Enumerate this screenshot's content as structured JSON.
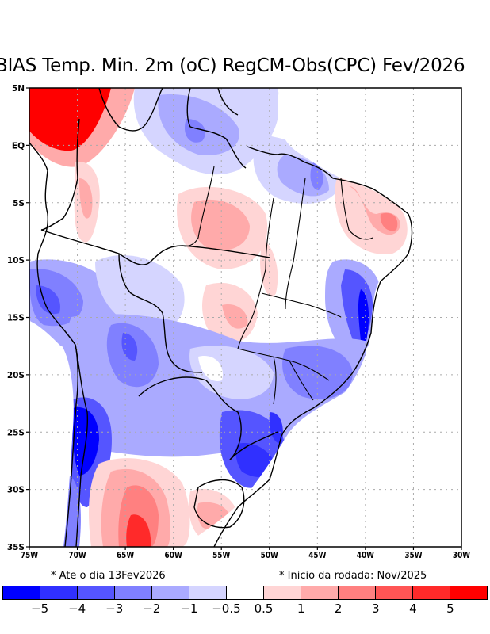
{
  "title": "BIAS Temp. Min. 2m (oC) RegCM-Obs(CPC) Fev/2026",
  "notes": {
    "left": "* Ate o dia 13Fev2026",
    "right": "* Inicio da rodada: Nov/2025"
  },
  "map": {
    "lon_range": [
      -75,
      -30
    ],
    "lat_range": [
      -35,
      5
    ],
    "lon_ticks": [
      {
        "value": -75,
        "label": "75W"
      },
      {
        "value": -70,
        "label": "70W"
      },
      {
        "value": -65,
        "label": "65W"
      },
      {
        "value": -60,
        "label": "60W"
      },
      {
        "value": -55,
        "label": "55W"
      },
      {
        "value": -50,
        "label": "50W"
      },
      {
        "value": -45,
        "label": "45W"
      },
      {
        "value": -40,
        "label": "40W"
      },
      {
        "value": -35,
        "label": "35W"
      },
      {
        "value": -30,
        "label": "30W"
      }
    ],
    "lat_ticks": [
      {
        "value": 5,
        "label": "5N"
      },
      {
        "value": 0,
        "label": "EQ"
      },
      {
        "value": -5,
        "label": "5S"
      },
      {
        "value": -10,
        "label": "10S"
      },
      {
        "value": -15,
        "label": "15S"
      },
      {
        "value": -20,
        "label": "20S"
      },
      {
        "value": -25,
        "label": "25S"
      },
      {
        "value": -30,
        "label": "30S"
      },
      {
        "value": -35,
        "label": "35S"
      }
    ]
  },
  "colorbar": {
    "colors": [
      "#0000ff",
      "#3030ff",
      "#5555ff",
      "#8080ff",
      "#aaaaff",
      "#d5d5ff",
      "#ffffff",
      "#ffd5d5",
      "#ffaaaa",
      "#ff8080",
      "#ff5555",
      "#ff2a2a",
      "#ff0000"
    ],
    "labels": [
      "-5",
      "-4",
      "-3",
      "-2",
      "-1",
      "-0.5",
      "0.5",
      "1",
      "2",
      "3",
      "4",
      "5"
    ]
  }
}
